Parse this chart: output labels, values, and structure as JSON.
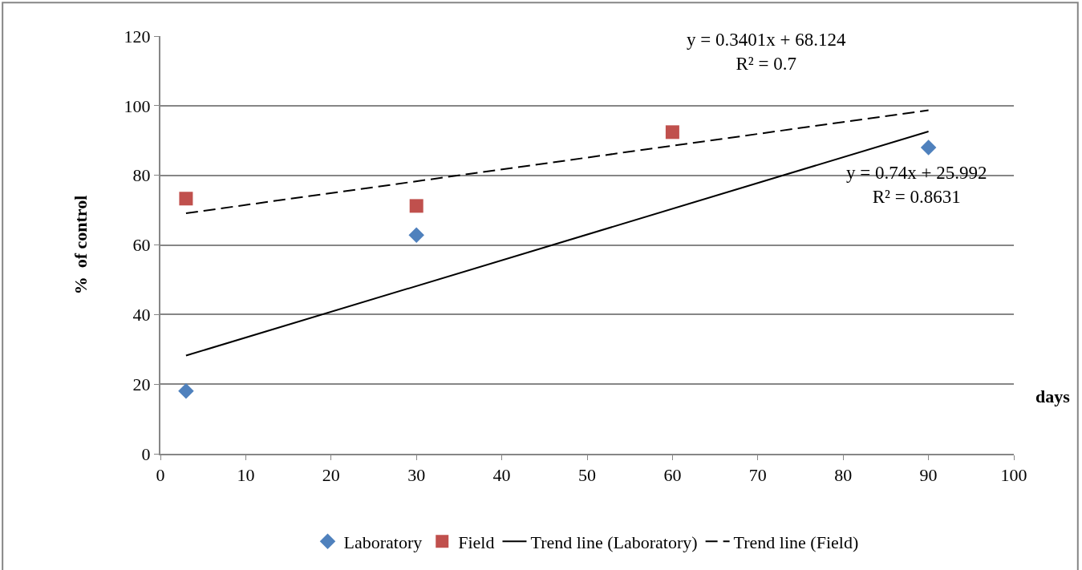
{
  "chart_data": {
    "type": "scatter",
    "xlabel": "days",
    "ylabel": "%  of control",
    "xlim": [
      0,
      100
    ],
    "xticks": [
      0,
      10,
      20,
      30,
      40,
      50,
      60,
      70,
      80,
      90,
      100
    ],
    "ylim": [
      0,
      120
    ],
    "yticks": [
      0,
      20,
      40,
      60,
      80,
      100,
      120
    ],
    "grid": "y",
    "legend": "bottom",
    "series": [
      {
        "name": "Laboratory",
        "marker": "diamond",
        "color": "#4f81bd",
        "x": [
          3,
          30,
          90
        ],
        "values": [
          18,
          62.8,
          88
        ]
      },
      {
        "name": "Field",
        "marker": "square",
        "color": "#c0504d",
        "x": [
          3,
          30,
          60
        ],
        "values": [
          73.3,
          71.2,
          92.4
        ]
      },
      {
        "name": "Trend line (Laboratory)",
        "type": "line",
        "marker": "none",
        "line_style": "solid",
        "color": "#000000",
        "x": [
          3,
          90
        ],
        "values": [
          28.2,
          92.6
        ]
      },
      {
        "name": "Trend line (Field)",
        "type": "line",
        "marker": "none",
        "line_style": "dashed",
        "color": "#000000",
        "x": [
          3,
          90
        ],
        "values": [
          69.1,
          98.7
        ]
      }
    ],
    "annotations": [
      "y = 0.3401x + 68.124\nR² = 0.7",
      "y = 0.74x + 25.992\nR² = 0.8631"
    ]
  }
}
